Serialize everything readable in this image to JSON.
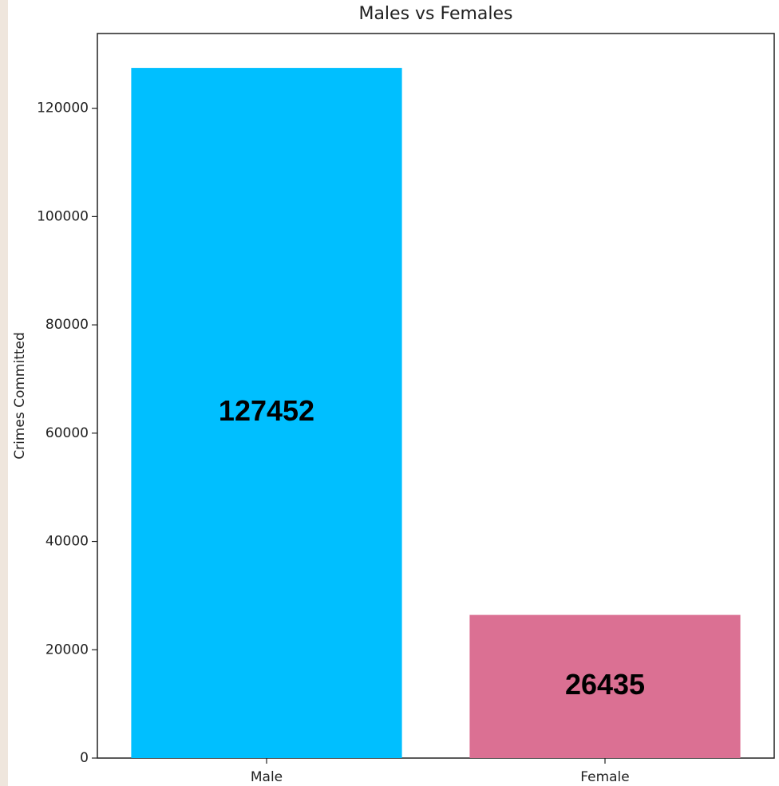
{
  "chart_data": {
    "type": "bar",
    "title": "Males vs Females",
    "y_label": "Crimes Committed",
    "categories": [
      "Male",
      "Female"
    ],
    "values": [
      127452,
      26435
    ],
    "colors": [
      "#00bfff",
      "#db7093"
    ],
    "ylim": [
      0,
      133800
    ],
    "yticks": [
      0,
      20000,
      40000,
      60000,
      80000,
      100000,
      120000
    ],
    "show_value_labels": true
  }
}
